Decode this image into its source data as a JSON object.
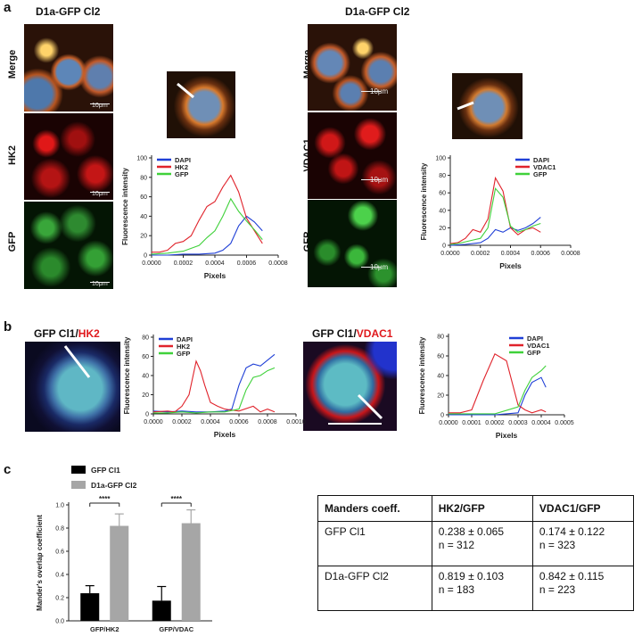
{
  "panel_labels": {
    "a": "a",
    "b": "b",
    "c": "c"
  },
  "panel_a": {
    "left_title": "D1a-GFP Cl2",
    "right_title": "D1a-GFP Cl2",
    "left_rows": [
      "Merge",
      "HK2",
      "GFP"
    ],
    "right_rows": [
      "Merge",
      "VDAC1",
      "GFP"
    ],
    "scale_text": "10μm"
  },
  "panel_b": {
    "left_title_prefix": "GFP Cl1/",
    "left_title_marker": "HK2",
    "right_title_prefix": "GFP Cl1/",
    "right_title_marker": "VDAC1",
    "marker_color": "#e0191d"
  },
  "table": {
    "header": [
      "Manders coeff.",
      "HK2/GFP",
      "VDAC1/GFP"
    ],
    "rows": [
      {
        "label": "GFP Cl1",
        "hk2": [
          "0.238 ± 0.065",
          "n = 312"
        ],
        "vdac1": [
          "0.174 ± 0.122",
          "n = 323"
        ]
      },
      {
        "label": "D1a-GFP Cl2",
        "hk2": [
          "0.819 ± 0.103",
          "n = 183"
        ],
        "vdac1": [
          "0.842 ± 0.115",
          "n = 223"
        ]
      }
    ]
  },
  "chart_data": [
    {
      "id": "a-left",
      "type": "line",
      "ylabel": "Fluorescence intensity",
      "xlabel": "Pixels",
      "xlim": [
        0,
        0.0008
      ],
      "ylim": [
        0,
        100
      ],
      "xticks": [
        "0.0000",
        "0.0002",
        "0.0004",
        "0.0006",
        "0.0008"
      ],
      "yticks": [
        "0",
        "20",
        "40",
        "60",
        "80",
        "100"
      ],
      "legend": "top-left",
      "series": [
        {
          "name": "DAPI",
          "color": "#1f3fd6",
          "x": [
            0,
            0.0001,
            0.0002,
            0.0003,
            0.0004,
            0.00045,
            0.0005,
            0.00055,
            0.0006,
            0.00065,
            0.0007
          ],
          "y": [
            0,
            0,
            1,
            1,
            2,
            5,
            12,
            30,
            40,
            34,
            25
          ]
        },
        {
          "name": "HK2",
          "color": "#e0232b",
          "x": [
            0,
            5e-05,
            0.0001,
            0.00015,
            0.0002,
            0.00025,
            0.0003,
            0.00035,
            0.0004,
            0.00045,
            0.0005,
            0.00055,
            0.0006,
            0.00065,
            0.0007
          ],
          "y": [
            3,
            3,
            5,
            12,
            14,
            20,
            36,
            50,
            55,
            70,
            82,
            65,
            38,
            25,
            12
          ]
        },
        {
          "name": "GFP",
          "color": "#3fd13a",
          "x": [
            0,
            0.0001,
            0.0002,
            0.0003,
            0.00035,
            0.0004,
            0.00045,
            0.0005,
            0.00055,
            0.0006,
            0.00065,
            0.0007
          ],
          "y": [
            1,
            2,
            4,
            10,
            18,
            25,
            40,
            58,
            45,
            35,
            26,
            16
          ]
        }
      ]
    },
    {
      "id": "a-right",
      "type": "line",
      "ylabel": "Fluorescence intensity",
      "xlabel": "Pixels",
      "xlim": [
        0,
        0.0008
      ],
      "ylim": [
        0,
        100
      ],
      "xticks": [
        "0.0000",
        "0.0002",
        "0.0004",
        "0.0006",
        "0.0008"
      ],
      "yticks": [
        "0",
        "20",
        "40",
        "60",
        "80",
        "100"
      ],
      "legend": "top-right",
      "series": [
        {
          "name": "DAPI",
          "color": "#1f3fd6",
          "x": [
            0,
            0.0001,
            0.0002,
            0.00025,
            0.0003,
            0.00035,
            0.0004,
            0.00045,
            0.0005,
            0.00055,
            0.0006
          ],
          "y": [
            0,
            1,
            3,
            8,
            18,
            15,
            20,
            17,
            20,
            25,
            32
          ]
        },
        {
          "name": "VDAC1",
          "color": "#e0232b",
          "x": [
            0,
            5e-05,
            0.0001,
            0.00015,
            0.0002,
            0.00025,
            0.0003,
            0.00035,
            0.0004,
            0.00045,
            0.0005,
            0.00055,
            0.0006
          ],
          "y": [
            2,
            3,
            8,
            18,
            15,
            30,
            77,
            62,
            20,
            12,
            18,
            20,
            15
          ]
        },
        {
          "name": "GFP",
          "color": "#3fd13a",
          "x": [
            0,
            5e-05,
            0.0001,
            0.00015,
            0.0002,
            0.00025,
            0.0003,
            0.00035,
            0.0004,
            0.00045,
            0.0005,
            0.00055,
            0.0006
          ],
          "y": [
            1,
            2,
            4,
            6,
            8,
            20,
            65,
            55,
            22,
            15,
            18,
            22,
            25
          ]
        }
      ]
    },
    {
      "id": "b-left",
      "type": "line",
      "ylabel": "Fluorescence intensity",
      "xlabel": "Pixels",
      "xlim": [
        0,
        0.001
      ],
      "ylim": [
        0,
        80
      ],
      "xticks": [
        "0.0000",
        "0.0002",
        "0.0004",
        "0.0006",
        "0.0008",
        "0.0010"
      ],
      "yticks": [
        "0",
        "20",
        "40",
        "60",
        "80"
      ],
      "legend": "top-left",
      "series": [
        {
          "name": "DAPI",
          "color": "#1f3fd6",
          "x": [
            0,
            0.0001,
            0.0002,
            0.0003,
            0.0004,
            0.0005,
            0.00055,
            0.0006,
            0.00065,
            0.0007,
            0.00075,
            0.0008,
            0.00085
          ],
          "y": [
            3,
            2,
            3,
            2,
            2,
            3,
            5,
            30,
            48,
            52,
            50,
            56,
            62
          ]
        },
        {
          "name": "HK2",
          "color": "#e0232b",
          "x": [
            0,
            0.0001,
            0.00015,
            0.0002,
            0.00025,
            0.0003,
            0.00033,
            0.00036,
            0.0004,
            0.00045,
            0.0005,
            0.0006,
            0.0007,
            0.00075,
            0.0008,
            0.00085
          ],
          "y": [
            2,
            3,
            2,
            8,
            20,
            55,
            45,
            30,
            12,
            8,
            5,
            3,
            8,
            2,
            5,
            2
          ]
        },
        {
          "name": "GFP",
          "color": "#3fd13a",
          "x": [
            0,
            0.0001,
            0.0002,
            0.0003,
            0.0004,
            0.0005,
            0.0006,
            0.00065,
            0.0007,
            0.00075,
            0.0008,
            0.00085
          ],
          "y": [
            1,
            1,
            2,
            1,
            2,
            2,
            5,
            25,
            38,
            40,
            45,
            48
          ]
        }
      ]
    },
    {
      "id": "b-right",
      "type": "line",
      "ylabel": "Fluorescence intensity",
      "xlabel": "Pixels",
      "xlim": [
        0,
        0.0005
      ],
      "ylim": [
        0,
        80
      ],
      "xticks": [
        "0.0000",
        "0.0001",
        "0.0002",
        "0.0003",
        "0.0004",
        "0.0005"
      ],
      "yticks": [
        "0",
        "20",
        "40",
        "60",
        "80"
      ],
      "legend": "top-right",
      "series": [
        {
          "name": "DAPI",
          "color": "#1f3fd6",
          "x": [
            0,
            0.0001,
            0.0002,
            0.0003,
            0.00033,
            0.00036,
            0.0004,
            0.00042
          ],
          "y": [
            0,
            0,
            0,
            2,
            20,
            33,
            38,
            28
          ]
        },
        {
          "name": "VDAC1",
          "color": "#e0232b",
          "x": [
            0,
            5e-05,
            0.0001,
            0.00015,
            0.0002,
            0.00025,
            0.0003,
            0.00033,
            0.00036,
            0.0004,
            0.00042
          ],
          "y": [
            2,
            2,
            5,
            35,
            62,
            55,
            10,
            5,
            2,
            5,
            3
          ]
        },
        {
          "name": "GFP",
          "color": "#3fd13a",
          "x": [
            0,
            0.0001,
            0.0002,
            0.0003,
            0.00033,
            0.00036,
            0.0004,
            0.00042
          ],
          "y": [
            1,
            1,
            1,
            8,
            25,
            38,
            45,
            50
          ]
        }
      ]
    },
    {
      "id": "c-bars",
      "type": "bar",
      "ylabel": "Mander's overlap coefficient",
      "xlabel": "",
      "ylim": [
        0,
        1.0
      ],
      "yticks": [
        "0.0",
        "0.2",
        "0.4",
        "0.6",
        "0.8",
        "1.0"
      ],
      "categories": [
        "GFP/HK2",
        "GFP/VDAC"
      ],
      "legend": "top-left",
      "series": [
        {
          "name": "GFP Cl1",
          "color": "#000000",
          "values": [
            0.238,
            0.174
          ],
          "errors": [
            0.065,
            0.122
          ]
        },
        {
          "name": "D1a-GFP Cl2",
          "color": "#a6a6a6",
          "values": [
            0.819,
            0.842
          ],
          "errors": [
            0.103,
            0.115
          ]
        }
      ],
      "significance": [
        "****",
        "****"
      ]
    }
  ]
}
